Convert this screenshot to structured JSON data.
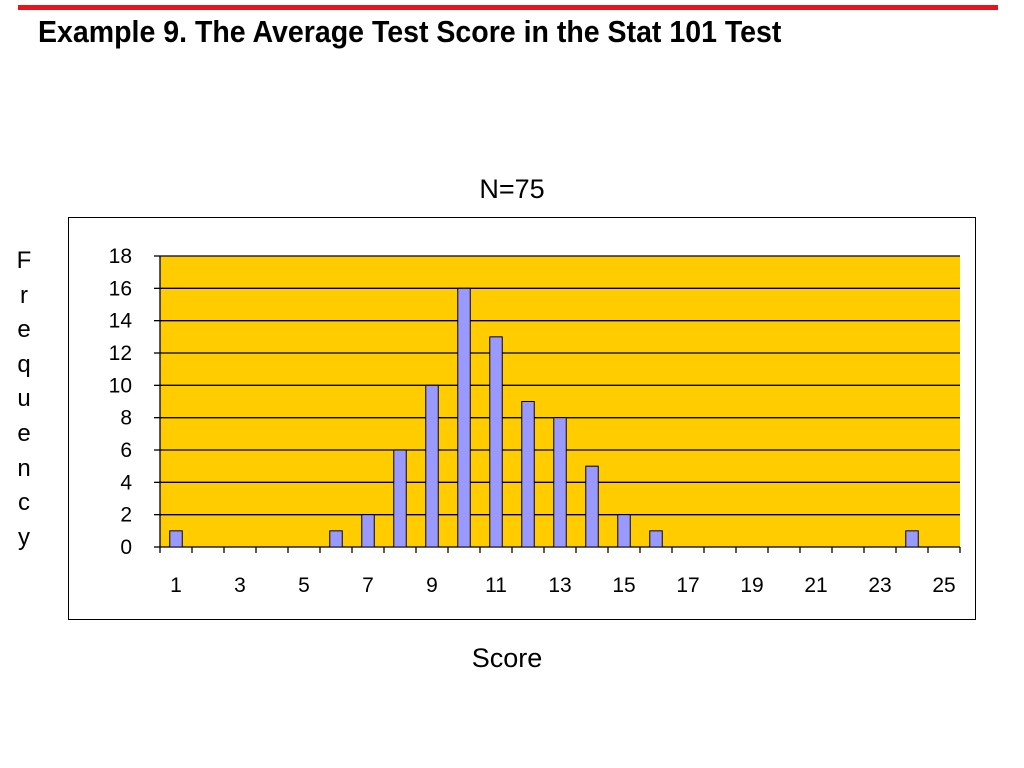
{
  "slide": {
    "title": "Example 9.  The Average Test Score in the Stat 101 Test"
  },
  "colors": {
    "accent_rule": "#e8141c",
    "plot_background": "#ffcc00",
    "bar_fill": "#9999ff",
    "bar_stroke": "#000000"
  },
  "chart_data": {
    "type": "bar",
    "title": "N=75",
    "xlabel": "Score",
    "ylabel": "Frequency",
    "categories": [
      1,
      2,
      3,
      4,
      5,
      6,
      7,
      8,
      9,
      10,
      11,
      12,
      13,
      14,
      15,
      16,
      17,
      18,
      19,
      20,
      21,
      22,
      23,
      24,
      25
    ],
    "values": [
      1,
      0,
      0,
      0,
      0,
      1,
      2,
      6,
      10,
      16,
      13,
      9,
      8,
      5,
      2,
      1,
      0,
      0,
      0,
      0,
      0,
      0,
      0,
      1,
      0
    ],
    "x_tick_labels": [
      "1",
      "3",
      "5",
      "7",
      "9",
      "11",
      "13",
      "15",
      "17",
      "19",
      "21",
      "23",
      "25"
    ],
    "y_ticks": [
      0,
      2,
      4,
      6,
      8,
      10,
      12,
      14,
      16,
      18
    ],
    "ylim": [
      0,
      18
    ],
    "grid": "horizontal",
    "legend": "none"
  }
}
